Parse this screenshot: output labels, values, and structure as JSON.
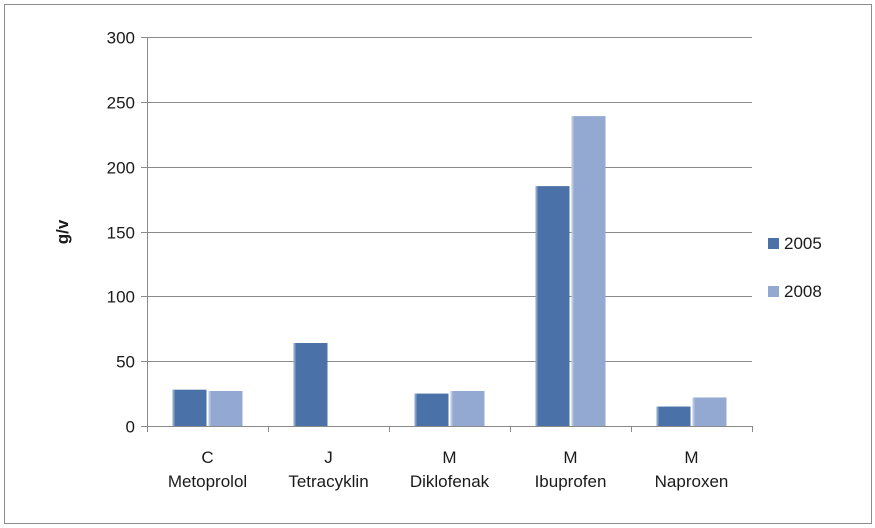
{
  "chart_data": {
    "type": "bar",
    "categories": [
      [
        "C",
        "Metoprolol"
      ],
      [
        "J",
        "Tetracyklin"
      ],
      [
        "M",
        "Diklofenak"
      ],
      [
        "M",
        "Ibuprofen"
      ],
      [
        "M",
        "Naproxen"
      ]
    ],
    "series": [
      {
        "name": "2005",
        "color": "#4a72a8",
        "values": [
          28,
          64,
          25,
          185,
          15
        ]
      },
      {
        "name": "2008",
        "color": "#93a9d1",
        "values": [
          27,
          0,
          27,
          239,
          22
        ]
      }
    ],
    "title": "",
    "xlabel": "",
    "ylabel": "g/v",
    "ylim": [
      0,
      300
    ],
    "yticks": [
      0,
      50,
      100,
      150,
      200,
      250,
      300
    ],
    "grid": true,
    "legend": "right"
  }
}
